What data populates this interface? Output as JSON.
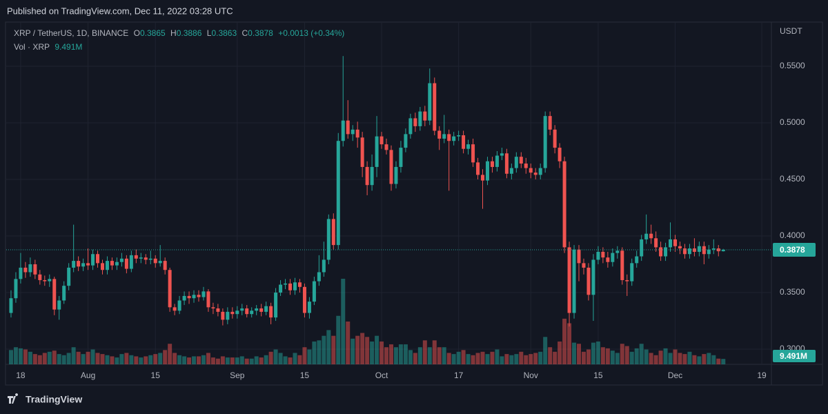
{
  "header": {
    "published": "Published on TradingView.com, Dec 11, 2022 03:28 UTC",
    "brand": "TradingView"
  },
  "chart_data": {
    "type": "candlestick",
    "title": "XRP / TetherUS, 1D, BINANCE",
    "legend_labels": {
      "open": "O",
      "high": "H",
      "low": "L",
      "close": "C",
      "change": "+0.0013 (+0.34%)",
      "volume": "Vol · XRP"
    },
    "currency": "USDT",
    "up_color": "#26a69a",
    "down_color": "#ef5350",
    "grid": true,
    "xlim": [
      "2022-07-15",
      "2022-12-21"
    ],
    "xticks": [
      {
        "value": "2022-07-18",
        "label": "18"
      },
      {
        "value": "2022-08-01",
        "label": "Aug"
      },
      {
        "value": "2022-08-15",
        "label": "15"
      },
      {
        "value": "2022-09-01",
        "label": "Sep"
      },
      {
        "value": "2022-09-15",
        "label": "15"
      },
      {
        "value": "2022-10-01",
        "label": "Oct"
      },
      {
        "value": "2022-10-17",
        "label": "17"
      },
      {
        "value": "2022-11-01",
        "label": "Nov"
      },
      {
        "value": "2022-11-15",
        "label": "15"
      },
      {
        "value": "2022-12-01",
        "label": "Dec"
      },
      {
        "value": "2022-12-19",
        "label": "19"
      }
    ],
    "ylim": [
      0.2866,
      0.589
    ],
    "yticks": [
      {
        "value": 0.3,
        "label": "0.3000"
      },
      {
        "value": 0.35,
        "label": "0.3500"
      },
      {
        "value": 0.4,
        "label": "0.4000"
      },
      {
        "value": 0.45,
        "label": "0.4500"
      },
      {
        "value": 0.5,
        "label": "0.5000"
      },
      {
        "value": 0.55,
        "label": "0.5500"
      }
    ],
    "volume_ylim": [
      0,
      600000000
    ],
    "volume_label": "9.491M",
    "x": [
      "2022-07-16",
      "2022-07-17",
      "2022-07-18",
      "2022-07-19",
      "2022-07-20",
      "2022-07-21",
      "2022-07-22",
      "2022-07-23",
      "2022-07-24",
      "2022-07-25",
      "2022-07-26",
      "2022-07-27",
      "2022-07-28",
      "2022-07-29",
      "2022-07-30",
      "2022-07-31",
      "2022-08-01",
      "2022-08-02",
      "2022-08-03",
      "2022-08-04",
      "2022-08-05",
      "2022-08-06",
      "2022-08-07",
      "2022-08-08",
      "2022-08-09",
      "2022-08-10",
      "2022-08-11",
      "2022-08-12",
      "2022-08-13",
      "2022-08-14",
      "2022-08-15",
      "2022-08-16",
      "2022-08-17",
      "2022-08-18",
      "2022-08-19",
      "2022-08-20",
      "2022-08-21",
      "2022-08-22",
      "2022-08-23",
      "2022-08-24",
      "2022-08-25",
      "2022-08-26",
      "2022-08-27",
      "2022-08-28",
      "2022-08-29",
      "2022-08-30",
      "2022-08-31",
      "2022-09-01",
      "2022-09-02",
      "2022-09-03",
      "2022-09-04",
      "2022-09-05",
      "2022-09-06",
      "2022-09-07",
      "2022-09-08",
      "2022-09-09",
      "2022-09-10",
      "2022-09-11",
      "2022-09-12",
      "2022-09-13",
      "2022-09-14",
      "2022-09-15",
      "2022-09-16",
      "2022-09-17",
      "2022-09-18",
      "2022-09-19",
      "2022-09-20",
      "2022-09-21",
      "2022-09-22",
      "2022-09-23",
      "2022-09-24",
      "2022-09-25",
      "2022-09-26",
      "2022-09-27",
      "2022-09-28",
      "2022-09-29",
      "2022-09-30",
      "2022-10-01",
      "2022-10-02",
      "2022-10-03",
      "2022-10-04",
      "2022-10-05",
      "2022-10-06",
      "2022-10-07",
      "2022-10-08",
      "2022-10-09",
      "2022-10-10",
      "2022-10-11",
      "2022-10-12",
      "2022-10-13",
      "2022-10-14",
      "2022-10-15",
      "2022-10-16",
      "2022-10-17",
      "2022-10-18",
      "2022-10-19",
      "2022-10-20",
      "2022-10-21",
      "2022-10-22",
      "2022-10-23",
      "2022-10-24",
      "2022-10-25",
      "2022-10-26",
      "2022-10-27",
      "2022-10-28",
      "2022-10-29",
      "2022-10-30",
      "2022-10-31",
      "2022-11-01",
      "2022-11-02",
      "2022-11-03",
      "2022-11-04",
      "2022-11-05",
      "2022-11-06",
      "2022-11-07",
      "2022-11-08",
      "2022-11-09",
      "2022-11-10",
      "2022-11-11",
      "2022-11-12",
      "2022-11-13",
      "2022-11-14",
      "2022-11-15",
      "2022-11-16",
      "2022-11-17",
      "2022-11-18",
      "2022-11-19",
      "2022-11-20",
      "2022-11-21",
      "2022-11-22",
      "2022-11-23",
      "2022-11-24",
      "2022-11-25",
      "2022-11-26",
      "2022-11-27",
      "2022-11-28",
      "2022-11-29",
      "2022-11-30",
      "2022-12-01",
      "2022-12-02",
      "2022-12-03",
      "2022-12-04",
      "2022-12-05",
      "2022-12-06",
      "2022-12-07",
      "2022-12-08",
      "2022-12-09",
      "2022-12-10",
      "2022-12-11"
    ],
    "open": [
      0.332,
      0.345,
      0.362,
      0.372,
      0.368,
      0.375,
      0.366,
      0.361,
      0.36,
      0.362,
      0.335,
      0.343,
      0.356,
      0.372,
      0.378,
      0.373,
      0.376,
      0.374,
      0.384,
      0.376,
      0.37,
      0.378,
      0.374,
      0.377,
      0.38,
      0.371,
      0.383,
      0.38,
      0.381,
      0.379,
      0.38,
      0.376,
      0.378,
      0.37,
      0.337,
      0.334,
      0.343,
      0.347,
      0.345,
      0.348,
      0.346,
      0.351,
      0.337,
      0.336,
      0.333,
      0.326,
      0.333,
      0.331,
      0.334,
      0.336,
      0.331,
      0.334,
      0.336,
      0.333,
      0.338,
      0.328,
      0.35,
      0.357,
      0.358,
      0.352,
      0.359,
      0.355,
      0.332,
      0.342,
      0.36,
      0.368,
      0.379,
      0.415,
      0.392,
      0.484,
      0.502,
      0.49,
      0.494,
      0.487,
      0.461,
      0.445,
      0.461,
      0.488,
      0.481,
      0.476,
      0.446,
      0.461,
      0.478,
      0.49,
      0.504,
      0.497,
      0.51,
      0.502,
      0.535,
      0.493,
      0.486,
      0.49,
      0.484,
      0.488,
      0.489,
      0.477,
      0.481,
      0.465,
      0.454,
      0.449,
      0.466,
      0.461,
      0.471,
      0.473,
      0.455,
      0.46,
      0.47,
      0.464,
      0.46,
      0.456,
      0.454,
      0.46,
      0.506,
      0.494,
      0.478,
      0.466,
      0.39,
      0.332,
      0.388,
      0.376,
      0.372,
      0.348,
      0.379,
      0.386,
      0.381,
      0.377,
      0.385,
      0.387,
      0.361,
      0.36,
      0.376,
      0.382,
      0.397,
      0.402,
      0.398,
      0.39,
      0.382,
      0.39,
      0.397,
      0.391,
      0.389,
      0.384,
      0.389,
      0.386,
      0.391,
      0.384,
      0.388,
      0.389,
      0.3865
    ],
    "high": [
      0.352,
      0.368,
      0.385,
      0.377,
      0.381,
      0.379,
      0.37,
      0.365,
      0.366,
      0.364,
      0.347,
      0.36,
      0.376,
      0.41,
      0.382,
      0.38,
      0.389,
      0.388,
      0.387,
      0.379,
      0.382,
      0.381,
      0.381,
      0.385,
      0.383,
      0.387,
      0.388,
      0.385,
      0.384,
      0.387,
      0.383,
      0.392,
      0.381,
      0.372,
      0.34,
      0.347,
      0.351,
      0.351,
      0.352,
      0.352,
      0.355,
      0.353,
      0.341,
      0.34,
      0.336,
      0.337,
      0.337,
      0.338,
      0.34,
      0.339,
      0.337,
      0.339,
      0.34,
      0.342,
      0.341,
      0.354,
      0.361,
      0.362,
      0.362,
      0.363,
      0.362,
      0.358,
      0.346,
      0.364,
      0.383,
      0.395,
      0.419,
      0.42,
      0.491,
      0.559,
      0.52,
      0.498,
      0.501,
      0.492,
      0.466,
      0.472,
      0.506,
      0.492,
      0.486,
      0.48,
      0.466,
      0.484,
      0.495,
      0.508,
      0.509,
      0.514,
      0.515,
      0.548,
      0.54,
      0.497,
      0.507,
      0.494,
      0.492,
      0.493,
      0.493,
      0.485,
      0.486,
      0.469,
      0.459,
      0.47,
      0.47,
      0.475,
      0.478,
      0.477,
      0.464,
      0.474,
      0.474,
      0.469,
      0.464,
      0.46,
      0.464,
      0.51,
      0.51,
      0.498,
      0.482,
      0.47,
      0.395,
      0.392,
      0.392,
      0.38,
      0.376,
      0.384,
      0.391,
      0.39,
      0.386,
      0.389,
      0.391,
      0.39,
      0.366,
      0.38,
      0.387,
      0.401,
      0.419,
      0.41,
      0.404,
      0.395,
      0.394,
      0.412,
      0.401,
      0.395,
      0.393,
      0.393,
      0.398,
      0.395,
      0.395,
      0.392,
      0.397,
      0.392,
      0.3886
    ],
    "low": [
      0.328,
      0.341,
      0.358,
      0.363,
      0.364,
      0.362,
      0.357,
      0.356,
      0.355,
      0.33,
      0.326,
      0.34,
      0.352,
      0.368,
      0.369,
      0.369,
      0.37,
      0.37,
      0.372,
      0.366,
      0.366,
      0.37,
      0.37,
      0.373,
      0.367,
      0.368,
      0.376,
      0.376,
      0.375,
      0.375,
      0.372,
      0.373,
      0.366,
      0.333,
      0.33,
      0.331,
      0.339,
      0.34,
      0.341,
      0.342,
      0.343,
      0.333,
      0.331,
      0.329,
      0.321,
      0.322,
      0.327,
      0.327,
      0.33,
      0.328,
      0.328,
      0.33,
      0.329,
      0.33,
      0.322,
      0.325,
      0.347,
      0.353,
      0.348,
      0.348,
      0.35,
      0.328,
      0.327,
      0.339,
      0.356,
      0.364,
      0.375,
      0.388,
      0.388,
      0.479,
      0.486,
      0.484,
      0.478,
      0.452,
      0.436,
      0.44,
      0.452,
      0.477,
      0.472,
      0.44,
      0.442,
      0.456,
      0.474,
      0.486,
      0.492,
      0.493,
      0.497,
      0.498,
      0.489,
      0.476,
      0.482,
      0.44,
      0.48,
      0.484,
      0.473,
      0.472,
      0.461,
      0.45,
      0.424,
      0.445,
      0.456,
      0.457,
      0.467,
      0.451,
      0.45,
      0.456,
      0.46,
      0.455,
      0.451,
      0.45,
      0.45,
      0.456,
      0.489,
      0.473,
      0.46,
      0.385,
      0.32,
      0.327,
      0.36,
      0.366,
      0.343,
      0.325,
      0.375,
      0.376,
      0.372,
      0.373,
      0.38,
      0.357,
      0.347,
      0.356,
      0.372,
      0.378,
      0.393,
      0.393,
      0.386,
      0.378,
      0.378,
      0.386,
      0.386,
      0.384,
      0.38,
      0.38,
      0.382,
      0.382,
      0.375,
      0.38,
      0.384,
      0.382,
      0.3863
    ],
    "close": [
      0.345,
      0.362,
      0.372,
      0.368,
      0.375,
      0.366,
      0.361,
      0.36,
      0.362,
      0.335,
      0.343,
      0.356,
      0.372,
      0.378,
      0.373,
      0.376,
      0.374,
      0.384,
      0.376,
      0.37,
      0.378,
      0.374,
      0.377,
      0.38,
      0.371,
      0.383,
      0.38,
      0.381,
      0.379,
      0.38,
      0.376,
      0.378,
      0.37,
      0.337,
      0.334,
      0.343,
      0.347,
      0.345,
      0.348,
      0.346,
      0.351,
      0.337,
      0.336,
      0.333,
      0.326,
      0.333,
      0.331,
      0.334,
      0.336,
      0.331,
      0.334,
      0.336,
      0.333,
      0.338,
      0.328,
      0.35,
      0.357,
      0.358,
      0.352,
      0.359,
      0.355,
      0.332,
      0.342,
      0.36,
      0.368,
      0.379,
      0.415,
      0.392,
      0.484,
      0.502,
      0.49,
      0.494,
      0.487,
      0.461,
      0.445,
      0.461,
      0.488,
      0.481,
      0.476,
      0.446,
      0.461,
      0.478,
      0.49,
      0.504,
      0.497,
      0.51,
      0.502,
      0.535,
      0.493,
      0.486,
      0.49,
      0.484,
      0.488,
      0.489,
      0.477,
      0.481,
      0.465,
      0.454,
      0.449,
      0.466,
      0.461,
      0.471,
      0.473,
      0.455,
      0.46,
      0.47,
      0.464,
      0.46,
      0.456,
      0.454,
      0.46,
      0.506,
      0.494,
      0.478,
      0.466,
      0.39,
      0.332,
      0.388,
      0.376,
      0.372,
      0.348,
      0.379,
      0.386,
      0.381,
      0.377,
      0.385,
      0.387,
      0.361,
      0.36,
      0.376,
      0.382,
      0.397,
      0.402,
      0.398,
      0.39,
      0.382,
      0.39,
      0.397,
      0.391,
      0.389,
      0.384,
      0.389,
      0.386,
      0.391,
      0.384,
      0.388,
      0.389,
      0.3865,
      0.3878
    ],
    "volume": [
      25000000,
      30000000,
      28000000,
      26000000,
      22000000,
      18000000,
      16000000,
      20000000,
      22000000,
      24000000,
      18000000,
      16000000,
      20000000,
      30000000,
      22000000,
      18000000,
      22000000,
      26000000,
      20000000,
      18000000,
      16000000,
      14000000,
      12000000,
      18000000,
      20000000,
      16000000,
      14000000,
      12000000,
      14000000,
      16000000,
      18000000,
      20000000,
      25000000,
      36000000,
      20000000,
      16000000,
      14000000,
      12000000,
      14000000,
      14000000,
      16000000,
      20000000,
      12000000,
      10000000,
      14000000,
      12000000,
      12000000,
      12000000,
      14000000,
      10000000,
      10000000,
      14000000,
      12000000,
      16000000,
      22000000,
      26000000,
      20000000,
      14000000,
      12000000,
      20000000,
      16000000,
      30000000,
      26000000,
      40000000,
      42000000,
      50000000,
      60000000,
      50000000,
      85000000,
      150000000,
      75000000,
      45000000,
      50000000,
      55000000,
      48000000,
      40000000,
      50000000,
      40000000,
      30000000,
      35000000,
      30000000,
      35000000,
      35000000,
      25000000,
      20000000,
      30000000,
      42000000,
      30000000,
      42000000,
      30000000,
      30000000,
      20000000,
      18000000,
      22000000,
      25000000,
      18000000,
      16000000,
      20000000,
      22000000,
      18000000,
      22000000,
      26000000,
      14000000,
      18000000,
      16000000,
      18000000,
      22000000,
      16000000,
      18000000,
      20000000,
      22000000,
      48000000,
      30000000,
      22000000,
      40000000,
      80000000,
      72000000,
      38000000,
      36000000,
      22000000,
      26000000,
      38000000,
      40000000,
      30000000,
      28000000,
      24000000,
      20000000,
      36000000,
      32000000,
      22000000,
      28000000,
      36000000,
      26000000,
      20000000,
      16000000,
      24000000,
      28000000,
      20000000,
      26000000,
      20000000,
      18000000,
      22000000,
      16000000,
      14000000,
      18000000,
      20000000,
      16000000,
      10000000,
      9491000
    ]
  }
}
